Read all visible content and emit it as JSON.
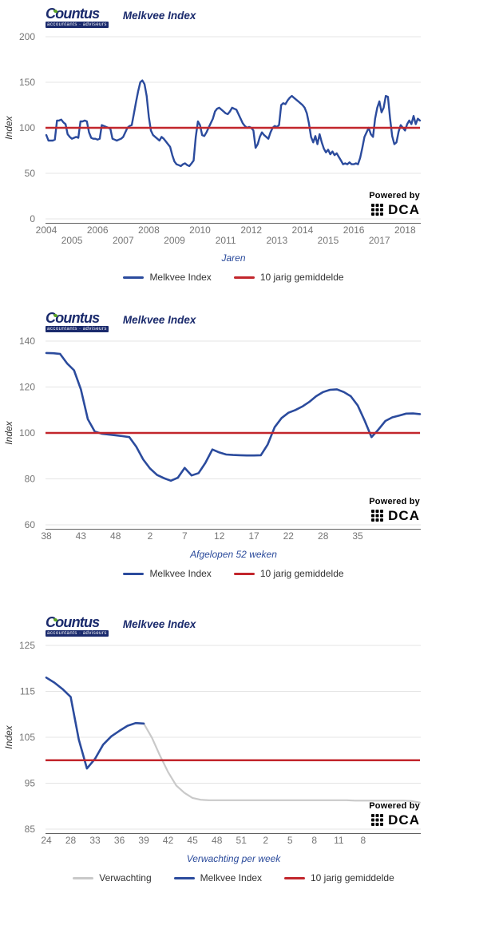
{
  "logo": {
    "name": "Countus",
    "subtitle": "accountants · adviseurs"
  },
  "powered_by": {
    "label": "Powered by",
    "brand": "DCA",
    "icon": "grid-icon"
  },
  "colors": {
    "brand_navy": "#1a2a6c",
    "melkvee_blue": "#2b4b9d",
    "gemiddelde_red": "#c2262c",
    "verwachting_gray": "#c9c9c9",
    "axis_title_blue": "#2a4a9b",
    "tick_gray": "#757575",
    "grid_gray": "#e4e4e4"
  },
  "chart_data": [
    {
      "type": "line",
      "title": "Melkvee Index",
      "ylabel": "Index",
      "xlabel": "Jaren",
      "ylim": [
        0,
        200
      ],
      "yticks": [
        0,
        50,
        100,
        150,
        200
      ],
      "grid": true,
      "legend_position": "bottom",
      "x_description": "monthly values, Jan 2004 - Aug 2018",
      "xticks": [
        {
          "label": "2004",
          "i": 0,
          "row": 1
        },
        {
          "label": "2005",
          "i": 12,
          "row": 2
        },
        {
          "label": "2006",
          "i": 24,
          "row": 1
        },
        {
          "label": "2007",
          "i": 36,
          "row": 2
        },
        {
          "label": "2008",
          "i": 48,
          "row": 1
        },
        {
          "label": "2009",
          "i": 60,
          "row": 2
        },
        {
          "label": "2010",
          "i": 72,
          "row": 1
        },
        {
          "label": "2011",
          "i": 84,
          "row": 2
        },
        {
          "label": "2012",
          "i": 96,
          "row": 1
        },
        {
          "label": "2013",
          "i": 108,
          "row": 2
        },
        {
          "label": "2014",
          "i": 120,
          "row": 1
        },
        {
          "label": "2015",
          "i": 132,
          "row": 2
        },
        {
          "label": "2016",
          "i": 144,
          "row": 1
        },
        {
          "label": "2017",
          "i": 156,
          "row": 2
        },
        {
          "label": "2018",
          "i": 168,
          "row": 1
        }
      ],
      "series": [
        {
          "name": "Melkvee Index",
          "color": "#2b4b9d",
          "width": 2.4,
          "values": [
            92,
            86,
            86,
            86,
            87,
            108,
            108,
            109,
            106,
            104,
            93,
            90,
            88,
            89,
            90,
            89,
            107,
            107,
            108,
            107,
            95,
            89,
            88,
            88,
            87,
            88,
            103,
            102,
            101,
            100,
            99,
            88,
            87,
            86,
            87,
            88,
            90,
            95,
            100,
            102,
            103,
            115,
            128,
            140,
            150,
            152,
            148,
            135,
            112,
            97,
            92,
            90,
            88,
            86,
            90,
            88,
            85,
            82,
            79,
            70,
            63,
            60,
            59,
            58,
            60,
            61,
            59,
            58,
            61,
            64,
            90,
            107,
            103,
            92,
            91,
            95,
            100,
            105,
            110,
            118,
            121,
            122,
            120,
            118,
            116,
            115,
            118,
            122,
            121,
            120,
            115,
            110,
            105,
            102,
            100,
            101,
            100,
            97,
            78,
            82,
            90,
            95,
            92,
            90,
            88,
            95,
            100,
            102,
            101,
            103,
            125,
            127,
            126,
            130,
            133,
            135,
            133,
            131,
            129,
            127,
            125,
            122,
            116,
            105,
            90,
            84,
            91,
            82,
            93,
            84,
            77,
            73,
            76,
            71,
            74,
            70,
            72,
            68,
            64,
            60,
            61,
            60,
            62,
            60,
            60,
            61,
            60,
            67,
            78,
            90,
            95,
            100,
            93,
            90,
            110,
            122,
            129,
            117,
            122,
            135,
            134,
            110,
            91,
            82,
            84,
            96,
            103,
            100,
            97,
            104,
            108,
            104,
            113,
            104,
            110,
            108
          ]
        },
        {
          "name": "10 jarig gemiddelde",
          "color": "#c2262c",
          "width": 2.5,
          "constant": 100
        }
      ],
      "legend": [
        {
          "label": "Melkvee Index",
          "color": "#2b4b9d"
        },
        {
          "label": "10 jarig gemiddelde",
          "color": "#c2262c"
        }
      ]
    },
    {
      "type": "line",
      "title": "Melkvee Index",
      "ylabel": "Index",
      "xlabel": "Afgelopen 52 weken",
      "ylim": [
        60,
        140
      ],
      "yticks": [
        60,
        80,
        100,
        120,
        140
      ],
      "grid": true,
      "legend_position": "bottom",
      "x_description": "weekly values, week 38 through week 38 next year",
      "xticks": [
        {
          "label": "38",
          "i": 0
        },
        {
          "label": "43",
          "i": 5
        },
        {
          "label": "48",
          "i": 10
        },
        {
          "label": "2",
          "i": 15
        },
        {
          "label": "7",
          "i": 20
        },
        {
          "label": "12",
          "i": 25
        },
        {
          "label": "17",
          "i": 30
        },
        {
          "label": "22",
          "i": 35
        },
        {
          "label": "28",
          "i": 40
        },
        {
          "label": "35",
          "i": 45
        }
      ],
      "series": [
        {
          "name": "Melkvee Index",
          "color": "#2b4b9d",
          "width": 2.6,
          "values": [
            134.8,
            134.7,
            134.4,
            130.3,
            127.3,
            119,
            106,
            100.6,
            99.7,
            99.3,
            99,
            98.6,
            98.2,
            94,
            88.5,
            84.5,
            81.7,
            80.3,
            79.2,
            80.5,
            84.8,
            81.5,
            82.5,
            87,
            92.8,
            91.5,
            90.6,
            90.4,
            90.3,
            90.2,
            90.2,
            90.3,
            95,
            102.5,
            106.5,
            108.8,
            110,
            111.5,
            113.5,
            116,
            117.8,
            118.8,
            119,
            117.8,
            116,
            112,
            105.4,
            98.2,
            101.5,
            105.2,
            106.8,
            107.6,
            108.4,
            108.5,
            108.2
          ]
        },
        {
          "name": "10 jarig gemiddelde",
          "color": "#c2262c",
          "width": 2.5,
          "constant": 100
        }
      ],
      "legend": [
        {
          "label": "Melkvee Index",
          "color": "#2b4b9d"
        },
        {
          "label": "10 jarig gemiddelde",
          "color": "#c2262c"
        }
      ]
    },
    {
      "type": "line",
      "title": "Melkvee Index",
      "ylabel": "Index",
      "xlabel": "Verwachting per week",
      "ylim": [
        85,
        125
      ],
      "yticks": [
        85,
        95,
        105,
        115,
        125
      ],
      "grid": true,
      "legend_position": "bottom",
      "x_description": "realised until week 39, forecast afterwards",
      "xticks": [
        {
          "label": "24",
          "i": 0
        },
        {
          "label": "28",
          "i": 3
        },
        {
          "label": "33",
          "i": 6
        },
        {
          "label": "36",
          "i": 9
        },
        {
          "label": "39",
          "i": 12
        },
        {
          "label": "42",
          "i": 15
        },
        {
          "label": "45",
          "i": 18
        },
        {
          "label": "48",
          "i": 21
        },
        {
          "label": "51",
          "i": 24
        },
        {
          "label": "2",
          "i": 27
        },
        {
          "label": "5",
          "i": 30
        },
        {
          "label": "8",
          "i": 33
        },
        {
          "label": "11",
          "i": 36
        },
        {
          "label": "8",
          "i": 39
        }
      ],
      "series": [
        {
          "name": "Verwachting",
          "color": "#c9c9c9",
          "width": 2.2,
          "values": [
            null,
            null,
            null,
            null,
            null,
            null,
            null,
            null,
            null,
            null,
            null,
            null,
            108,
            104.9,
            101,
            97.4,
            94.5,
            92.9,
            91.8,
            91.4,
            91.3,
            91.3,
            91.3,
            91.3,
            91.3,
            91.3,
            91.3,
            91.3,
            91.3,
            91.3,
            91.3,
            91.3,
            91.3,
            91.3,
            91.3,
            91.3,
            91.3,
            91.3,
            91.2,
            91.2,
            91.2,
            91.2,
            91.2,
            91.2,
            91.2,
            91.1,
            90.8
          ]
        },
        {
          "name": "Melkvee Index",
          "color": "#2b4b9d",
          "width": 2.6,
          "values": [
            118,
            116.9,
            115.5,
            113.8,
            104.5,
            98.2,
            100.3,
            103.4,
            105.2,
            106.4,
            107.5,
            108.1,
            108,
            null,
            null,
            null,
            null,
            null,
            null,
            null,
            null,
            null,
            null,
            null,
            null,
            null,
            null,
            null,
            null,
            null,
            null,
            null,
            null,
            null,
            null,
            null,
            null,
            null,
            null,
            null,
            null,
            null,
            null,
            null,
            null,
            null,
            null
          ]
        },
        {
          "name": "10 jarig gemiddelde",
          "color": "#c2262c",
          "width": 2.5,
          "constant": 100
        }
      ],
      "legend": [
        {
          "label": "Verwachting",
          "color": "#c9c9c9"
        },
        {
          "label": "Melkvee Index",
          "color": "#2b4b9d"
        },
        {
          "label": "10 jarig gemiddelde",
          "color": "#c2262c"
        }
      ]
    }
  ]
}
